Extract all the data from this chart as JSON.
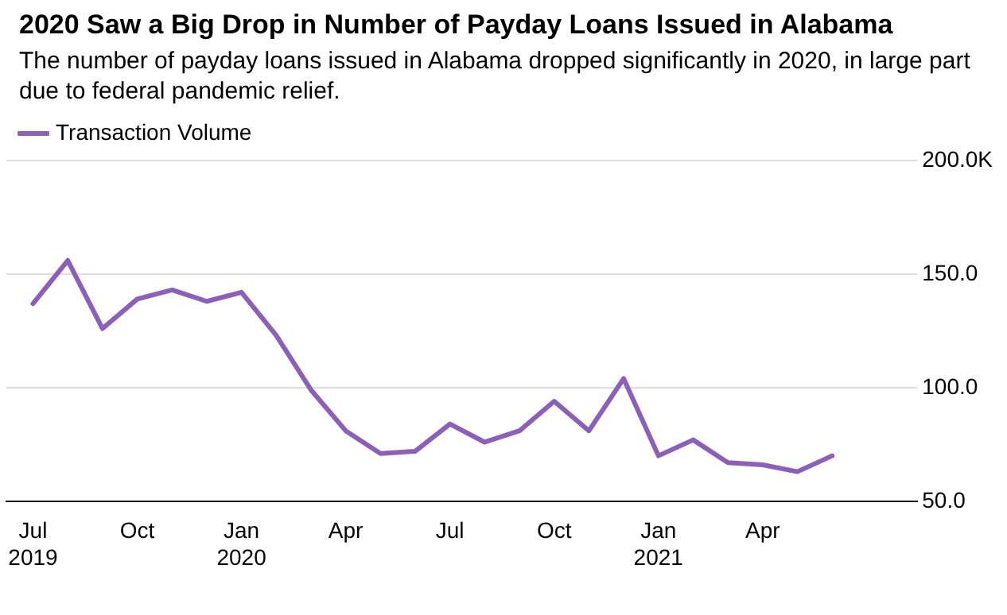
{
  "chart_data": {
    "type": "line",
    "title": "2020 Saw a Big Drop in Number of Payday Loans Issued in Alabama",
    "subtitle": "The number of payday loans issued in Alabama dropped significantly in 2020, in large part due to federal pandemic relief.",
    "x": [
      "2019-07",
      "2019-08",
      "2019-09",
      "2019-10",
      "2019-11",
      "2019-12",
      "2020-01",
      "2020-02",
      "2020-03",
      "2020-04",
      "2020-05",
      "2020-06",
      "2020-07",
      "2020-08",
      "2020-09",
      "2020-10",
      "2020-11",
      "2020-12",
      "2021-01",
      "2021-02",
      "2021-03",
      "2021-04",
      "2021-05",
      "2021-06"
    ],
    "series": [
      {
        "name": "Transaction Volume",
        "color": "#8c5fb8",
        "values": [
          137,
          156,
          126,
          139,
          143,
          138,
          142,
          123,
          99,
          81,
          71,
          72,
          84,
          76,
          81,
          94,
          81,
          104,
          70,
          77,
          67,
          66,
          63,
          70
        ]
      }
    ],
    "xlim": [
      "2019-06-08",
      "2021-08-15"
    ],
    "xticks": [
      {
        "value": "2019-07",
        "label": "Jul\n2019"
      },
      {
        "value": "2019-10",
        "label": "Oct"
      },
      {
        "value": "2020-01",
        "label": "Jan\n2020"
      },
      {
        "value": "2020-04",
        "label": "Apr"
      },
      {
        "value": "2020-07",
        "label": "Jul"
      },
      {
        "value": "2020-10",
        "label": "Oct"
      },
      {
        "value": "2021-01",
        "label": "Jan\n2021"
      },
      {
        "value": "2021-04",
        "label": "Apr"
      }
    ],
    "ylim": [
      50,
      200
    ],
    "yticks": [
      {
        "value": 50,
        "label": "50.0"
      },
      {
        "value": 100,
        "label": "100.0"
      },
      {
        "value": 150,
        "label": "150.0"
      },
      {
        "value": 200,
        "label": "200.0K"
      }
    ],
    "grid": "y",
    "legend": "top left",
    "marker": "none",
    "line_style": "solid"
  }
}
